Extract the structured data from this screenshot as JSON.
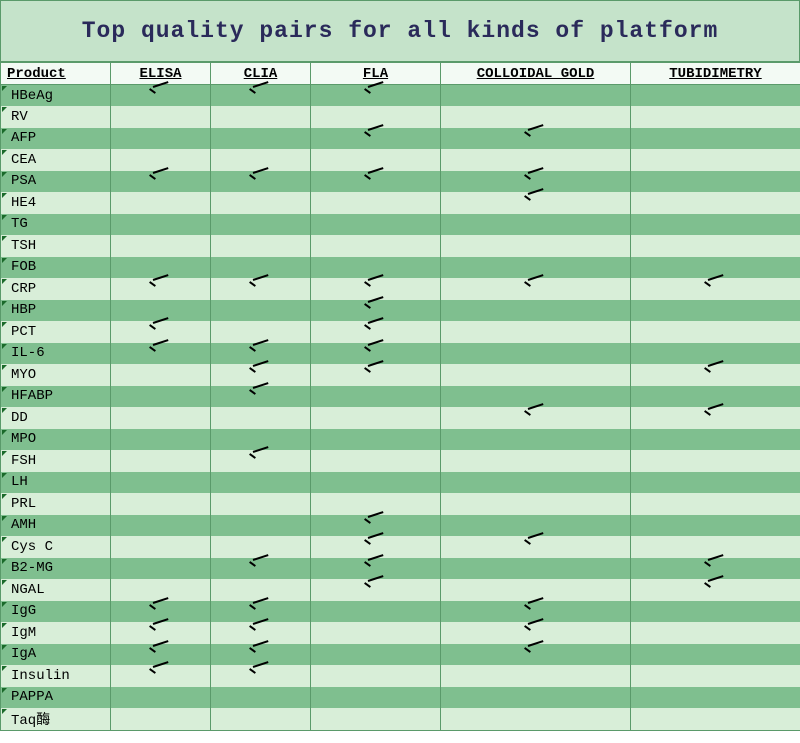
{
  "title": "Top quality pairs for all kinds of platform",
  "colors": {
    "title_bg": "#c5e3ca",
    "title_text": "#2a2a5a",
    "header_bg": "#f3faf4",
    "row_dark": "#7fbf8f",
    "row_light": "#d8eed8",
    "border": "#5a9a6a",
    "triangle": "#1a6a2a"
  },
  "columns": [
    {
      "key": "product",
      "label": "Product",
      "align": "left"
    },
    {
      "key": "elisa",
      "label": "ELISA",
      "align": "center"
    },
    {
      "key": "clia",
      "label": "CLIA",
      "align": "center"
    },
    {
      "key": "fla",
      "label": "FLA",
      "align": "center"
    },
    {
      "key": "gold",
      "label": "COLLOIDAL GOLD",
      "align": "center"
    },
    {
      "key": "tub",
      "label": "TUBIDIMETRY",
      "align": "center"
    }
  ],
  "rows": [
    {
      "product": "HBeAg",
      "checks": {
        "elisa": true,
        "clia": true,
        "fla": true
      }
    },
    {
      "product": "RV",
      "checks": {}
    },
    {
      "product": "AFP",
      "checks": {
        "fla": true,
        "gold": true
      }
    },
    {
      "product": "CEA",
      "checks": {}
    },
    {
      "product": "PSA",
      "checks": {
        "elisa": true,
        "clia": true,
        "fla": true,
        "gold": true
      }
    },
    {
      "product": "HE4",
      "checks": {
        "gold": true
      }
    },
    {
      "product": "TG",
      "checks": {}
    },
    {
      "product": "TSH",
      "checks": {}
    },
    {
      "product": "FOB",
      "checks": {}
    },
    {
      "product": "CRP",
      "checks": {
        "elisa": true,
        "clia": true,
        "fla": true,
        "gold": true,
        "tub": true
      }
    },
    {
      "product": "HBP",
      "checks": {
        "fla": true
      }
    },
    {
      "product": "PCT",
      "checks": {
        "elisa": true,
        "fla": true
      }
    },
    {
      "product": "IL-6",
      "checks": {
        "elisa": true,
        "clia": true,
        "fla": true
      }
    },
    {
      "product": "MYO",
      "checks": {
        "clia": true,
        "fla": true,
        "tub": true
      }
    },
    {
      "product": "HFABP",
      "checks": {
        "clia": true
      }
    },
    {
      "product": "DD",
      "checks": {
        "gold": true,
        "tub": true
      }
    },
    {
      "product": "MPO",
      "checks": {}
    },
    {
      "product": "FSH",
      "checks": {
        "clia": true
      }
    },
    {
      "product": "LH",
      "checks": {}
    },
    {
      "product": "PRL",
      "checks": {}
    },
    {
      "product": "AMH",
      "checks": {
        "fla": true
      }
    },
    {
      "product": "Cys C",
      "checks": {
        "fla": true,
        "gold": true
      }
    },
    {
      "product": "B2-MG",
      "checks": {
        "clia": true,
        "fla": true,
        "tub": true
      }
    },
    {
      "product": "NGAL",
      "checks": {
        "fla": true,
        "tub": true
      }
    },
    {
      "product": "IgG",
      "checks": {
        "elisa": true,
        "clia": true,
        "gold": true
      }
    },
    {
      "product": "IgM",
      "checks": {
        "elisa": true,
        "clia": true,
        "gold": true
      }
    },
    {
      "product": "IgA",
      "checks": {
        "elisa": true,
        "clia": true,
        "gold": true
      }
    },
    {
      "product": "Insulin",
      "checks": {
        "elisa": true,
        "clia": true
      }
    },
    {
      "product": "PAPPA",
      "checks": {}
    },
    {
      "product": "Taq酶",
      "checks": {}
    }
  ]
}
